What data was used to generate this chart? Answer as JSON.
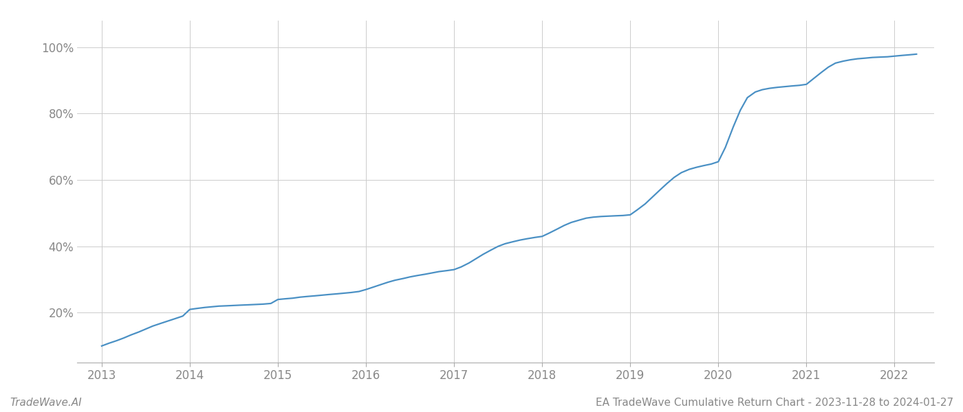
{
  "title": "EA TradeWave Cumulative Return Chart - 2023-11-28 to 2024-01-27",
  "watermark": "TradeWave.AI",
  "line_color": "#4a90c4",
  "background_color": "#ffffff",
  "grid_color": "#cccccc",
  "x_years": [
    2013,
    2014,
    2015,
    2016,
    2017,
    2018,
    2019,
    2020,
    2021,
    2022
  ],
  "data_x": [
    2013.0,
    2013.08,
    2013.17,
    2013.25,
    2013.33,
    2013.42,
    2013.5,
    2013.58,
    2013.67,
    2013.75,
    2013.83,
    2013.92,
    2014.0,
    2014.08,
    2014.17,
    2014.25,
    2014.33,
    2014.42,
    2014.5,
    2014.58,
    2014.67,
    2014.75,
    2014.83,
    2014.92,
    2015.0,
    2015.08,
    2015.17,
    2015.25,
    2015.33,
    2015.42,
    2015.5,
    2015.58,
    2015.67,
    2015.75,
    2015.83,
    2015.92,
    2016.0,
    2016.08,
    2016.17,
    2016.25,
    2016.33,
    2016.42,
    2016.5,
    2016.58,
    2016.67,
    2016.75,
    2016.83,
    2016.92,
    2017.0,
    2017.08,
    2017.17,
    2017.25,
    2017.33,
    2017.42,
    2017.5,
    2017.58,
    2017.67,
    2017.75,
    2017.83,
    2017.92,
    2018.0,
    2018.08,
    2018.17,
    2018.25,
    2018.33,
    2018.42,
    2018.5,
    2018.58,
    2018.67,
    2018.75,
    2018.83,
    2018.92,
    2019.0,
    2019.08,
    2019.17,
    2019.25,
    2019.33,
    2019.42,
    2019.5,
    2019.58,
    2019.67,
    2019.75,
    2019.83,
    2019.92,
    2020.0,
    2020.08,
    2020.17,
    2020.25,
    2020.33,
    2020.42,
    2020.5,
    2020.58,
    2020.67,
    2020.75,
    2020.83,
    2020.92,
    2021.0,
    2021.08,
    2021.17,
    2021.25,
    2021.33,
    2021.42,
    2021.5,
    2021.58,
    2021.67,
    2021.75,
    2021.83,
    2021.92,
    2022.0,
    2022.08,
    2022.17,
    2022.25
  ],
  "data_y": [
    0.1,
    0.108,
    0.116,
    0.124,
    0.133,
    0.142,
    0.151,
    0.16,
    0.168,
    0.175,
    0.182,
    0.19,
    0.21,
    0.213,
    0.216,
    0.218,
    0.22,
    0.221,
    0.222,
    0.223,
    0.224,
    0.225,
    0.226,
    0.228,
    0.24,
    0.242,
    0.244,
    0.247,
    0.249,
    0.251,
    0.253,
    0.255,
    0.257,
    0.259,
    0.261,
    0.264,
    0.27,
    0.277,
    0.285,
    0.292,
    0.298,
    0.303,
    0.308,
    0.312,
    0.316,
    0.32,
    0.324,
    0.327,
    0.33,
    0.338,
    0.35,
    0.363,
    0.376,
    0.389,
    0.4,
    0.408,
    0.414,
    0.419,
    0.423,
    0.427,
    0.43,
    0.44,
    0.452,
    0.463,
    0.472,
    0.479,
    0.485,
    0.488,
    0.49,
    0.491,
    0.492,
    0.493,
    0.495,
    0.51,
    0.528,
    0.548,
    0.568,
    0.59,
    0.608,
    0.622,
    0.632,
    0.638,
    0.643,
    0.648,
    0.655,
    0.698,
    0.76,
    0.81,
    0.848,
    0.865,
    0.872,
    0.876,
    0.879,
    0.881,
    0.883,
    0.885,
    0.888,
    0.905,
    0.924,
    0.94,
    0.952,
    0.958,
    0.962,
    0.965,
    0.967,
    0.969,
    0.97,
    0.971,
    0.973,
    0.975,
    0.977,
    0.979
  ],
  "ylim": [
    0.05,
    1.08
  ],
  "xlim": [
    2012.72,
    2022.45
  ],
  "yticks": [
    0.2,
    0.4,
    0.6,
    0.8,
    1.0
  ],
  "ytick_labels": [
    "20%",
    "40%",
    "60%",
    "80%",
    "100%"
  ],
  "title_fontsize": 11,
  "watermark_fontsize": 11,
  "axis_label_color": "#888888",
  "line_width": 1.6
}
